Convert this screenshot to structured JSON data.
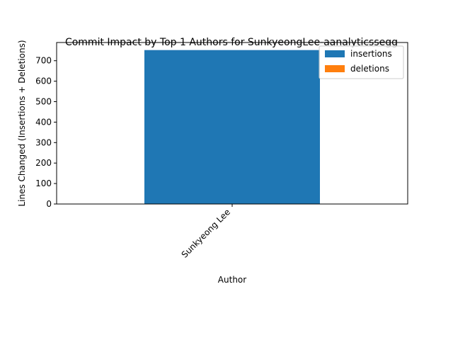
{
  "chart_data": {
    "type": "bar",
    "stacked": true,
    "title": "Commit Impact by Top 1 Authors for SunkyeongLee-aanalyticssegg",
    "xlabel": "Author",
    "ylabel": "Lines Changed (Insertions + Deletions)",
    "categories": [
      "Sunkyeong Lee"
    ],
    "series": [
      {
        "name": "insertions",
        "values": [
          752
        ],
        "color": "#1f77b4"
      },
      {
        "name": "deletions",
        "values": [
          0
        ],
        "color": "#ff7f0e"
      }
    ],
    "ylim": [
      0,
      789
    ],
    "yticks": [
      0,
      100,
      200,
      300,
      400,
      500,
      600,
      700
    ],
    "grid": false,
    "legend": "top-right"
  }
}
